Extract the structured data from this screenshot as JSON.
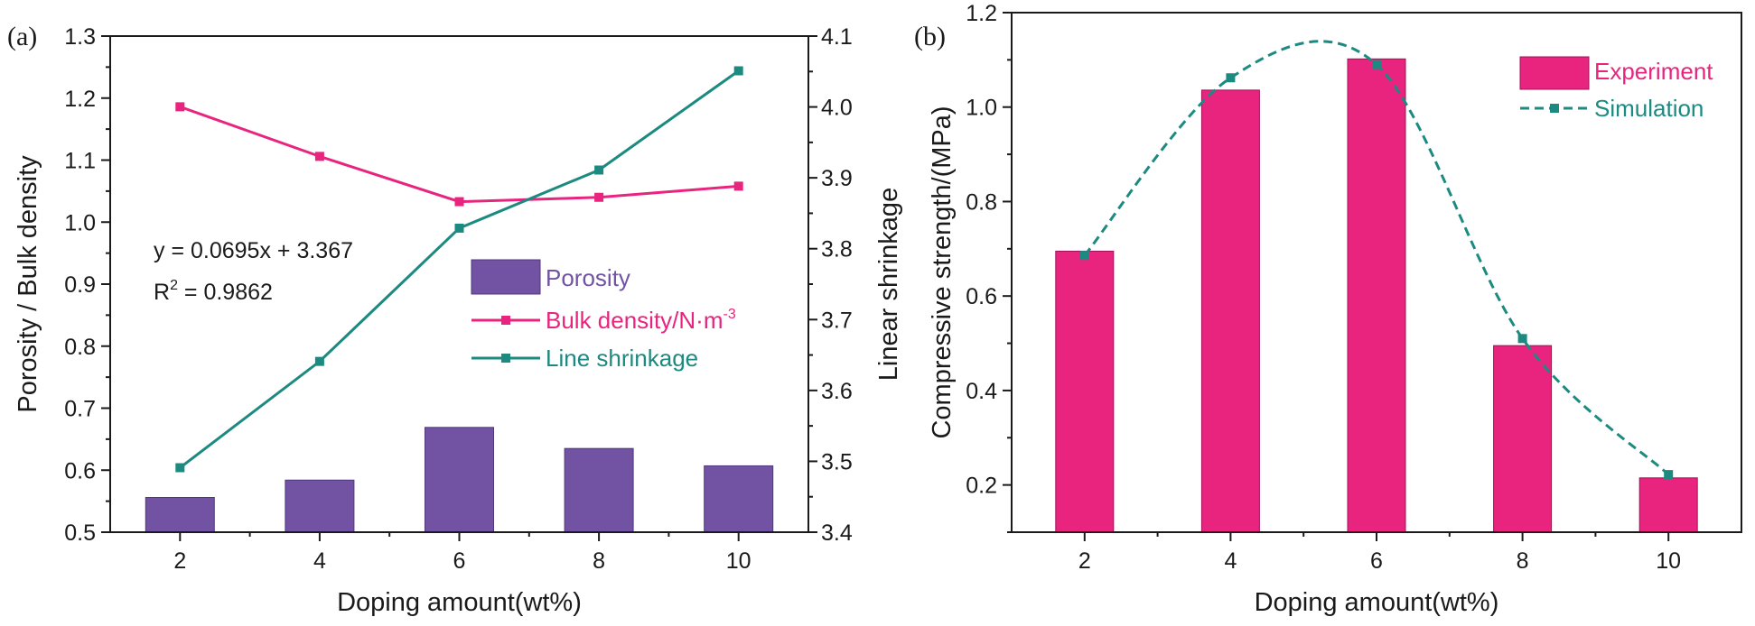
{
  "chart_data": [
    {
      "panel_label": "(a)",
      "type": "bar+line",
      "xlabel": "Doping amount(wt%)",
      "ylabel": "Porosity / Bulk density",
      "y2label": "Linear shrinkage",
      "x": [
        2,
        4,
        6,
        8,
        10
      ],
      "x_tick_labels": [
        "2",
        "4",
        "6",
        "8",
        "10"
      ],
      "xlim": [
        1,
        11
      ],
      "ylim": [
        0.5,
        1.3
      ],
      "y_ticks": [
        "0.5",
        "0.6",
        "0.7",
        "0.8",
        "0.9",
        "1.0",
        "1.1",
        "1.2",
        "1.3"
      ],
      "y2lim": [
        3.4,
        4.1
      ],
      "y2_ticks": [
        "3.4",
        "3.5",
        "3.6",
        "3.7",
        "3.8",
        "3.9",
        "4.0",
        "4.1"
      ],
      "series": [
        {
          "name": "Porosity",
          "kind": "bar",
          "axis": "left",
          "color": "#7152a3",
          "values": [
            0.556,
            0.584,
            0.669,
            0.635,
            0.607
          ]
        },
        {
          "name": "Bulk density/N·m",
          "name_sup": "-3",
          "kind": "line",
          "axis": "left",
          "color": "#e8247f",
          "values": [
            1.186,
            1.106,
            1.033,
            1.04,
            1.058
          ]
        },
        {
          "name": "Line shrinkage",
          "kind": "line",
          "axis": "right",
          "color": "#1c8a80",
          "values": [
            3.491,
            3.641,
            3.829,
            3.911,
            4.051
          ]
        }
      ],
      "annotation": {
        "eq": "y = 0.0695x + 3.367",
        "r2_prefix": "R",
        "r2_sup": "2",
        "r2_value": " = 0.9862"
      },
      "legend": "lower-right"
    },
    {
      "panel_label": "(b)",
      "type": "bar+line",
      "xlabel": "Doping amount(wt%)",
      "ylabel": "Compressive strength/(MPa)",
      "x": [
        2,
        4,
        6,
        8,
        10
      ],
      "x_tick_labels": [
        "2",
        "4",
        "6",
        "8",
        "10"
      ],
      "xlim": [
        1,
        11
      ],
      "ylim": [
        0.1,
        1.2
      ],
      "y_ticks": [
        "0.2",
        "0.4",
        "0.6",
        "0.8",
        "1.0",
        "1.2"
      ],
      "series": [
        {
          "name": "Experiment",
          "kind": "bar",
          "color": "#e8247f",
          "values": [
            0.695,
            1.036,
            1.102,
            0.495,
            0.215
          ]
        },
        {
          "name": "Simulation",
          "kind": "line-dashed",
          "color": "#1c8a80",
          "values": [
            0.686,
            1.062,
            1.09,
            0.51,
            0.222
          ]
        }
      ],
      "legend": "top-right"
    }
  ]
}
